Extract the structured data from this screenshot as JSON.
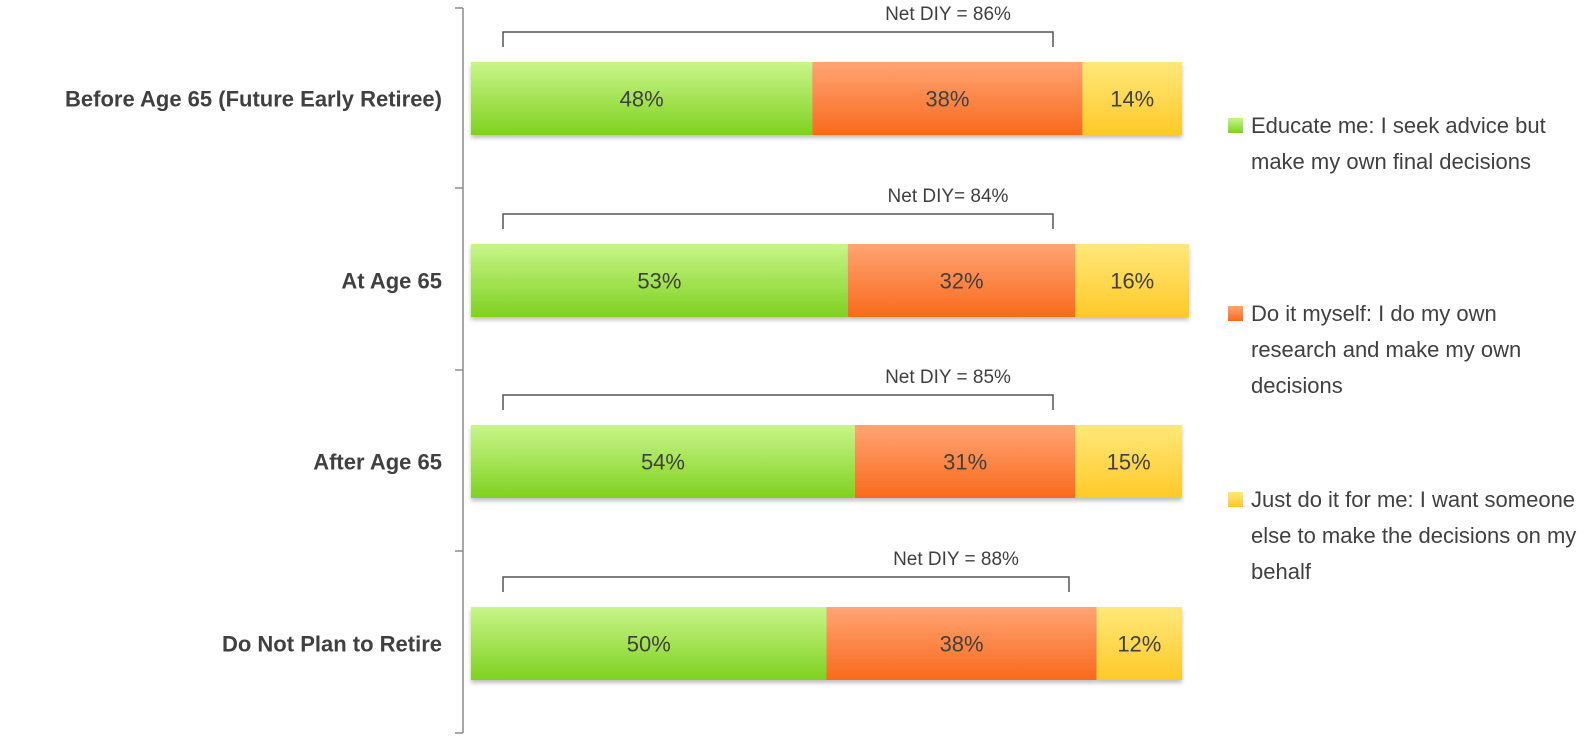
{
  "chart_data": {
    "type": "bar",
    "orientation": "horizontal",
    "stacked": true,
    "categories": [
      "Before Age 65 (Future Early Retiree)",
      "At Age 65",
      "After Age 65",
      "Do Not Plan to Retire"
    ],
    "series": [
      {
        "name": "Educate me: I seek advice but make my own final decisions",
        "values": [
          48,
          53,
          54,
          50
        ],
        "labels": [
          "48%",
          "53%",
          "54%",
          "50%"
        ]
      },
      {
        "name": "Do it myself: I do my own research and make my own decisions",
        "values": [
          38,
          32,
          31,
          38
        ],
        "labels": [
          "38%",
          "32%",
          "31%",
          "38%"
        ]
      },
      {
        "name": "Just do it for me: I want someone else to make the decisions on my behalf",
        "values": [
          14,
          16,
          15,
          12
        ],
        "labels": [
          "14%",
          "16%",
          "15%",
          "12%"
        ]
      }
    ],
    "annotations": [
      "Net DIY = 86%",
      "Net DIY= 84%",
      "Net DIY = 85%",
      "Net DIY = 88%"
    ],
    "xlim": [
      0,
      100
    ],
    "legend_position": "right",
    "grid": false,
    "colors": {
      "educate": {
        "top": "#c8f58a",
        "bottom": "#7fd11f"
      },
      "diy": {
        "top": "#ffa474",
        "bottom": "#f96a1c"
      },
      "justdo": {
        "top": "#ffe87a",
        "bottom": "#ffc928"
      },
      "axis": "#8c8c8c",
      "text": "#404040"
    }
  }
}
